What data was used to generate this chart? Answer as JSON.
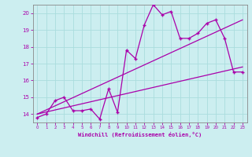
{
  "bg_color": "#cceef0",
  "grid_color": "#aadddd",
  "line_color": "#aa00aa",
  "marker_color": "#aa00aa",
  "xlabel": "Windchill (Refroidissement éolien,°C)",
  "xlabel_color": "#aa00aa",
  "tick_color": "#aa00aa",
  "spine_color": "#888888",
  "xlim": [
    -0.5,
    23.5
  ],
  "ylim": [
    13.5,
    20.5
  ],
  "yticks": [
    14,
    15,
    16,
    17,
    18,
    19,
    20
  ],
  "xticks": [
    0,
    1,
    2,
    3,
    4,
    5,
    6,
    7,
    8,
    9,
    10,
    11,
    12,
    13,
    14,
    15,
    16,
    17,
    18,
    19,
    20,
    21,
    22,
    23
  ],
  "series1_x": [
    0,
    1,
    2,
    3,
    4,
    5,
    6,
    7,
    8,
    9,
    10,
    11,
    12,
    13,
    14,
    15,
    16,
    17,
    18,
    19,
    20,
    21,
    22,
    23
  ],
  "series1_y": [
    13.8,
    14.0,
    14.8,
    15.0,
    14.2,
    14.2,
    14.3,
    13.7,
    15.5,
    14.1,
    17.8,
    17.3,
    19.3,
    20.5,
    19.9,
    20.1,
    18.5,
    18.5,
    18.8,
    19.4,
    19.6,
    18.5,
    16.5,
    16.5
  ],
  "series2_x": [
    0,
    23
  ],
  "series2_y": [
    14.0,
    16.8
  ],
  "series3_x": [
    0,
    23
  ],
  "series3_y": [
    14.0,
    19.6
  ]
}
